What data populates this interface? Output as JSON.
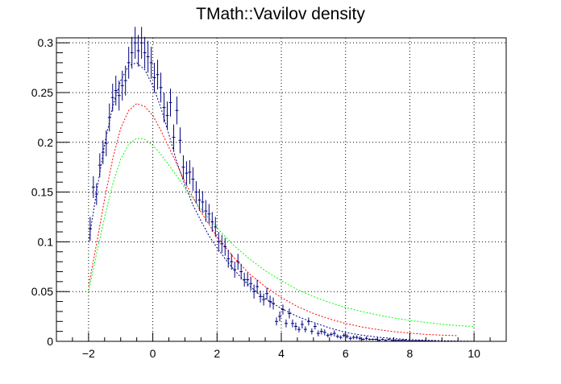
{
  "chart_data": {
    "type": "line",
    "title": "TMath::Vavilov density",
    "xlim": [
      -3,
      11
    ],
    "ylim": [
      0,
      0.305
    ],
    "grid": true,
    "x_ticks": [
      -2,
      0,
      2,
      4,
      6,
      8,
      10
    ],
    "x_tick_labels": [
      "−2",
      "0",
      "2",
      "4",
      "6",
      "8",
      "10"
    ],
    "y_ticks": [
      0,
      0.05,
      0.1,
      0.15,
      0.2,
      0.25,
      0.3
    ],
    "y_tick_labels": [
      "0",
      "0.05",
      "0.1",
      "0.15",
      "0.2",
      "0.25",
      "0.3"
    ],
    "colors": {
      "frame": "#000000",
      "grid": "#000000",
      "fit_curve": "#000080",
      "red_curve": "#ff0000",
      "green_curve": "#00ff00",
      "data_points": "#000080"
    },
    "series": [
      {
        "style": "dotted",
        "color_key": "fit_curve",
        "x": [
          -2,
          -1.75,
          -1.5,
          -1.25,
          -1,
          -0.75,
          -0.5,
          -0.25,
          0,
          0.25,
          0.5,
          0.75,
          1,
          1.25,
          1.5,
          1.75,
          2,
          2.25,
          2.5,
          2.75,
          3,
          3.25,
          3.5,
          4,
          4.5,
          5,
          5.5,
          6,
          6.5,
          7,
          7.5,
          8,
          8.5,
          9,
          9.5,
          10
        ],
        "y": [
          0.1,
          0.15,
          0.198,
          0.236,
          0.262,
          0.277,
          0.28,
          0.273,
          0.257,
          0.235,
          0.208,
          0.18,
          0.157,
          0.137,
          0.121,
          0.106,
          0.094,
          0.083,
          0.073,
          0.064,
          0.056,
          0.049,
          0.043,
          0.033,
          0.025,
          0.019,
          0.0135,
          0.009,
          0.0062,
          0.0042,
          0.0028,
          0.0018,
          0.0011,
          0.0006,
          0.0003,
          0.0001
        ]
      },
      {
        "style": "dotted",
        "color_key": "red_curve",
        "x": [
          -2,
          -1.75,
          -1.5,
          -1.25,
          -1,
          -0.75,
          -0.5,
          -0.25,
          0,
          0.25,
          0.5,
          0.75,
          1,
          1.5,
          2,
          2.5,
          3,
          3.5,
          4,
          4.5,
          5,
          5.5,
          6,
          6.5,
          7,
          7.5,
          8,
          8.5,
          9,
          9.5
        ],
        "y": [
          0.055,
          0.098,
          0.143,
          0.183,
          0.214,
          0.232,
          0.239,
          0.236,
          0.227,
          0.212,
          0.195,
          0.178,
          0.16,
          0.13,
          0.105,
          0.085,
          0.068,
          0.055,
          0.044,
          0.035,
          0.028,
          0.0225,
          0.018,
          0.0145,
          0.0118,
          0.0098,
          0.0082,
          0.007,
          0.0062,
          0.0057
        ]
      },
      {
        "style": "dotted",
        "color_key": "green_curve",
        "x": [
          -2,
          -1.75,
          -1.5,
          -1.25,
          -1,
          -0.75,
          -0.5,
          -0.25,
          0,
          0.25,
          0.5,
          0.75,
          1,
          1.5,
          2,
          2.5,
          3,
          3.5,
          4,
          4.5,
          5,
          5.5,
          6,
          6.5,
          7,
          7.5,
          8,
          8.5,
          9,
          9.5,
          10
        ],
        "y": [
          0.05,
          0.088,
          0.125,
          0.158,
          0.183,
          0.198,
          0.204,
          0.203,
          0.197,
          0.188,
          0.177,
          0.166,
          0.154,
          0.133,
          0.114,
          0.097,
          0.083,
          0.071,
          0.061,
          0.052,
          0.045,
          0.039,
          0.034,
          0.03,
          0.0265,
          0.0235,
          0.021,
          0.019,
          0.0172,
          0.0158,
          0.0148
        ]
      }
    ],
    "points": {
      "color_key": "data_points",
      "x_halfwidth": 0.05,
      "x": [
        -1.95,
        -1.85,
        -1.75,
        -1.65,
        -1.55,
        -1.45,
        -1.35,
        -1.25,
        -1.15,
        -1.05,
        -0.95,
        -0.85,
        -0.75,
        -0.65,
        -0.55,
        -0.45,
        -0.35,
        -0.25,
        -0.15,
        -0.05,
        0.05,
        0.15,
        0.25,
        0.35,
        0.45,
        0.55,
        0.65,
        0.75,
        0.85,
        0.95,
        1.05,
        1.15,
        1.25,
        1.35,
        1.45,
        1.55,
        1.65,
        1.75,
        1.85,
        1.95,
        2.05,
        2.15,
        2.25,
        2.35,
        2.45,
        2.55,
        2.65,
        2.75,
        2.85,
        2.95,
        3.05,
        3.15,
        3.25,
        3.35,
        3.45,
        3.55,
        3.65,
        3.75,
        3.85,
        3.95,
        4.05,
        4.15,
        4.25,
        4.35,
        4.45,
        4.55,
        4.65,
        4.75,
        4.85,
        4.95,
        5.05,
        5.15,
        5.25,
        5.35,
        5.45,
        5.55,
        5.65,
        5.75,
        5.85,
        5.95,
        6.05,
        6.15,
        6.25,
        6.35,
        6.45,
        6.55,
        6.65,
        6.75,
        6.85,
        6.95,
        7.05,
        7.15,
        7.25,
        7.35,
        7.45,
        7.55,
        7.65,
        7.75,
        7.85,
        7.95,
        8.05,
        8.15,
        8.25,
        8.35,
        8.45,
        8.55,
        8.65,
        8.75
      ],
      "y": [
        0.113,
        0.155,
        0.148,
        0.177,
        0.19,
        0.199,
        0.225,
        0.245,
        0.252,
        0.247,
        0.257,
        0.262,
        0.28,
        0.29,
        0.3,
        0.292,
        0.3,
        0.29,
        0.286,
        0.28,
        0.265,
        0.268,
        0.255,
        0.235,
        0.227,
        0.24,
        0.205,
        0.232,
        0.202,
        0.175,
        0.169,
        0.17,
        0.163,
        0.15,
        0.142,
        0.14,
        0.131,
        0.128,
        0.12,
        0.115,
        0.1,
        0.098,
        0.095,
        0.083,
        0.08,
        0.072,
        0.08,
        0.07,
        0.062,
        0.062,
        0.058,
        0.05,
        0.055,
        0.045,
        0.042,
        0.048,
        0.04,
        0.038,
        0.02,
        0.025,
        0.032,
        0.018,
        0.028,
        0.018,
        0.015,
        0.012,
        0.017,
        0.012,
        0.02,
        0.01,
        0.015,
        0.008,
        0.01,
        0.009,
        0.006,
        0.007,
        0.008,
        0.005,
        0.004,
        0.006,
        0.005,
        0.003,
        0.004,
        0.004,
        0.003,
        0.002,
        0.003,
        0.002,
        0.002,
        0.002,
        0.001,
        0.002,
        0.001,
        0.002,
        0.001,
        0.001,
        0.001,
        0.001,
        0.001,
        0.0005,
        0.0005,
        0.0005,
        0.0005,
        0.0005,
        0.0004,
        0.0003,
        0.0003,
        0.0002
      ],
      "err": [
        0.012,
        0.011,
        0.011,
        0.012,
        0.012,
        0.013,
        0.014,
        0.014,
        0.015,
        0.015,
        0.015,
        0.015,
        0.016,
        0.016,
        0.016,
        0.016,
        0.016,
        0.016,
        0.016,
        0.016,
        0.015,
        0.015,
        0.015,
        0.015,
        0.014,
        0.014,
        0.013,
        0.014,
        0.013,
        0.012,
        0.012,
        0.012,
        0.012,
        0.011,
        0.011,
        0.011,
        0.011,
        0.01,
        0.01,
        0.01,
        0.01,
        0.009,
        0.009,
        0.009,
        0.008,
        0.008,
        0.008,
        0.008,
        0.007,
        0.007,
        0.007,
        0.007,
        0.007,
        0.006,
        0.006,
        0.006,
        0.006,
        0.006,
        0.004,
        0.005,
        0.005,
        0.004,
        0.005,
        0.004,
        0.004,
        0.003,
        0.004,
        0.003,
        0.004,
        0.003,
        0.003,
        0.003,
        0.003,
        0.003,
        0.002,
        0.002,
        0.003,
        0.002,
        0.002,
        0.002,
        0.002,
        0.002,
        0.002,
        0.002,
        0.002,
        0.001,
        0.002,
        0.001,
        0.001,
        0.001,
        0.001,
        0.001,
        0.001,
        0.001,
        0.001,
        0.001,
        0.001,
        0.001,
        0.001,
        0.0007,
        0.0007,
        0.0007,
        0.0007,
        0.0007,
        0.0006,
        0.0005,
        0.0005,
        0.0004
      ]
    }
  }
}
